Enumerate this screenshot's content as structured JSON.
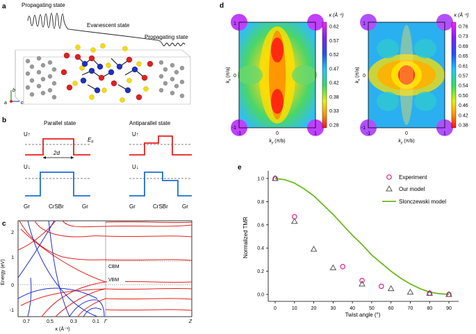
{
  "panel_labels": {
    "a": "a",
    "b": "b",
    "c": "c",
    "d": "d",
    "e": "e"
  },
  "panel_a": {
    "propagating_left": "Propagating state",
    "evanescent": "Evanescent state",
    "propagating_right": "Propagating state",
    "axis_b": "b",
    "axis_a": "a",
    "axis_c": "c"
  },
  "panel_b": {
    "parallel_title": "Parallel state",
    "antiparallel_title": "Antiparallel state",
    "u_up": "U↑",
    "u_down": "U↓",
    "ef": "E",
    "ef_sub": "F",
    "width": "2d",
    "materials": [
      "Gr",
      "CrSBr",
      "Gr"
    ],
    "spin_up_color": "#e3201c",
    "spin_down_color": "#1f6fd1"
  },
  "panel_c": {
    "ylabel": "Energy (eV)",
    "xlabel": "κ (Å⁻¹)",
    "yticks": [
      "2",
      "1",
      "0",
      "-1"
    ],
    "xticks": [
      "0.7",
      "0.5",
      "0.3",
      "0.1"
    ],
    "gamma": "Γ",
    "z": "Z",
    "cbm": "CBM",
    "vbm": "VBM"
  },
  "panel_d": {
    "left_map": {
      "title": "κ (Å⁻¹)",
      "colorbar_ticks": [
        "0.62",
        "0.57",
        "0.52",
        "0.47",
        "0.42",
        "0.38",
        "0.33",
        "0.28"
      ],
      "ylabel": "k",
      "ylabel_sub": "x",
      "ylabel_unit": " (π/a)",
      "xlabel": "k",
      "xlabel_sub": "y",
      "xlabel_unit": " (π/b)",
      "xticks": [
        "-1",
        "0",
        "1"
      ],
      "yticks": [
        "1",
        "0",
        "-1"
      ]
    },
    "right_map": {
      "title": "κ (Å⁻¹)",
      "colorbar_ticks": [
        "0.76",
        "0.73",
        "0.69",
        "0.65",
        "0.61",
        "0.57",
        "0.54",
        "0.50",
        "0.46",
        "0.42",
        "0.38"
      ],
      "ylabel": "k",
      "ylabel_sub": "x",
      "ylabel_unit": " (π/a)",
      "xlabel": "k",
      "xlabel_sub": "y",
      "xlabel_unit": " (π/b)",
      "xticks": [
        "-1",
        "0",
        "1"
      ],
      "yticks": [
        "1",
        "0",
        "-1"
      ]
    }
  },
  "chart_data": {
    "type": "scatter",
    "title": "",
    "xlabel": "Twist angle (°)",
    "ylabel": "Normalized TMR",
    "xlim": [
      0,
      90
    ],
    "ylim": [
      0,
      1.0
    ],
    "xticks": [
      0,
      10,
      20,
      30,
      40,
      50,
      60,
      70,
      80,
      90
    ],
    "yticks": [
      0,
      0.2,
      0.4,
      0.6,
      0.8,
      1.0
    ],
    "legend_position": "top-right",
    "series": [
      {
        "name": "Experiment",
        "marker": "circle",
        "color": "#e0208c",
        "x": [
          0,
          10,
          35,
          45,
          55,
          80,
          90
        ],
        "y": [
          1.0,
          0.67,
          0.24,
          0.12,
          0.07,
          0.01,
          0.0
        ]
      },
      {
        "name": "Our model",
        "marker": "triangle",
        "color": "#555555",
        "x": [
          0,
          10,
          20,
          30,
          45,
          60,
          70,
          80,
          90
        ],
        "y": [
          1.0,
          0.63,
          0.39,
          0.23,
          0.09,
          0.05,
          0.02,
          0.01,
          0.0
        ]
      },
      {
        "name": "Slonczewski model",
        "marker": "line",
        "color": "#6cb81d",
        "x": [
          0,
          5,
          10,
          15,
          20,
          25,
          30,
          35,
          40,
          45,
          50,
          55,
          60,
          65,
          70,
          75,
          80,
          85,
          90
        ],
        "y": [
          1.0,
          0.99,
          0.96,
          0.91,
          0.85,
          0.77,
          0.69,
          0.6,
          0.51,
          0.43,
          0.34,
          0.27,
          0.2,
          0.14,
          0.09,
          0.05,
          0.02,
          0.006,
          0.0
        ]
      }
    ]
  }
}
